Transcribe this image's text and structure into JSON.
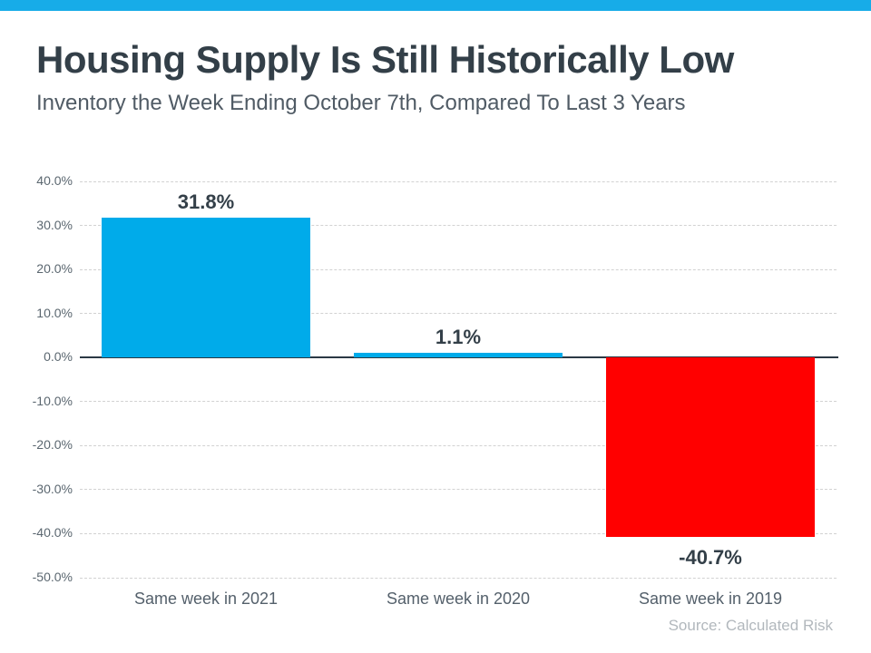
{
  "colors": {
    "top_stripe": "#17ace8",
    "bar_positive_blue": "#00abea",
    "bar_negative_red": "#ff0000",
    "title_text": "#333f48",
    "subtitle_text": "#505b65",
    "axis_text": "#5b6770",
    "gridline": "#d2d2d2",
    "zero_line": "#2b3844",
    "source_text": "#b2b8bd"
  },
  "chart_data": {
    "type": "bar",
    "title": "Housing Supply Is Still Historically Low",
    "subtitle": "Inventory the Week Ending October 7th, Compared To Last 3 Years",
    "categories": [
      "Same week in 2021",
      "Same week in 2020",
      "Same week in 2019"
    ],
    "values": [
      31.8,
      1.1,
      -40.7
    ],
    "value_labels": [
      "31.8%",
      "1.1%",
      "-40.7%"
    ],
    "bar_colors": [
      "#00abea",
      "#00abea",
      "#ff0000"
    ],
    "xlabel": "",
    "ylabel": "",
    "ylim": [
      -50,
      40
    ],
    "ytick_step": 10,
    "ytick_labels": [
      "40.0%",
      "30.0%",
      "20.0%",
      "10.0%",
      "0.0%",
      "-10.0%",
      "-20.0%",
      "-30.0%",
      "-40.0%",
      "-50.0%"
    ],
    "grid": true,
    "legend": false,
    "source": "Source: Calculated Risk"
  }
}
